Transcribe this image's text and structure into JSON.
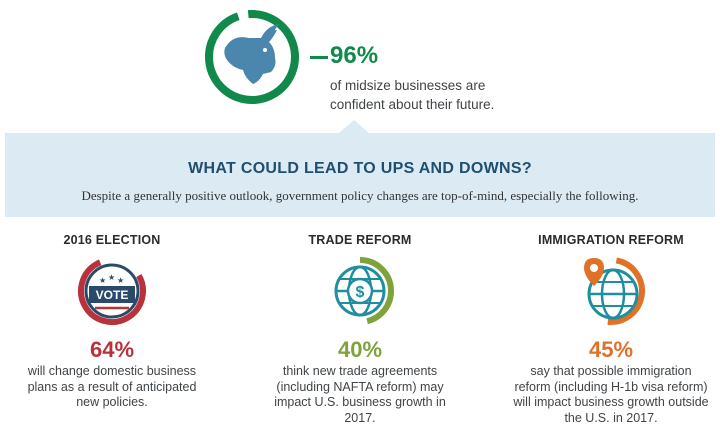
{
  "hero": {
    "percent": "96%",
    "description": "of midsize businesses are confident about their future.",
    "icon": "bull-icon",
    "accent_color": "#10894a"
  },
  "band": {
    "title": "WHAT COULD LEAD TO UPS AND DOWNS?",
    "subtitle": "Despite a generally positive outlook, government policy changes are top-of-mind, especially the following."
  },
  "columns": [
    {
      "title": "2016 ELECTION",
      "icon": "vote-badge-icon",
      "badge_text": "VOTE",
      "percent": "64%",
      "text": "will change domestic business plans as a result of anticipated new policies.",
      "color": "#b8323c"
    },
    {
      "title": "TRADE REFORM",
      "icon": "globe-dollar-icon",
      "percent": "40%",
      "text": "think new trade agreements (including NAFTA reform) may impact U.S. business growth in 2017.",
      "color": "#7fa23b"
    },
    {
      "title": "IMMIGRATION REFORM",
      "icon": "globe-pin-icon",
      "percent": "45%",
      "text": "say that possible immigration reform (including H-1b visa reform) will impact business growth outside the U.S. in 2017.",
      "color": "#e07128"
    }
  ]
}
